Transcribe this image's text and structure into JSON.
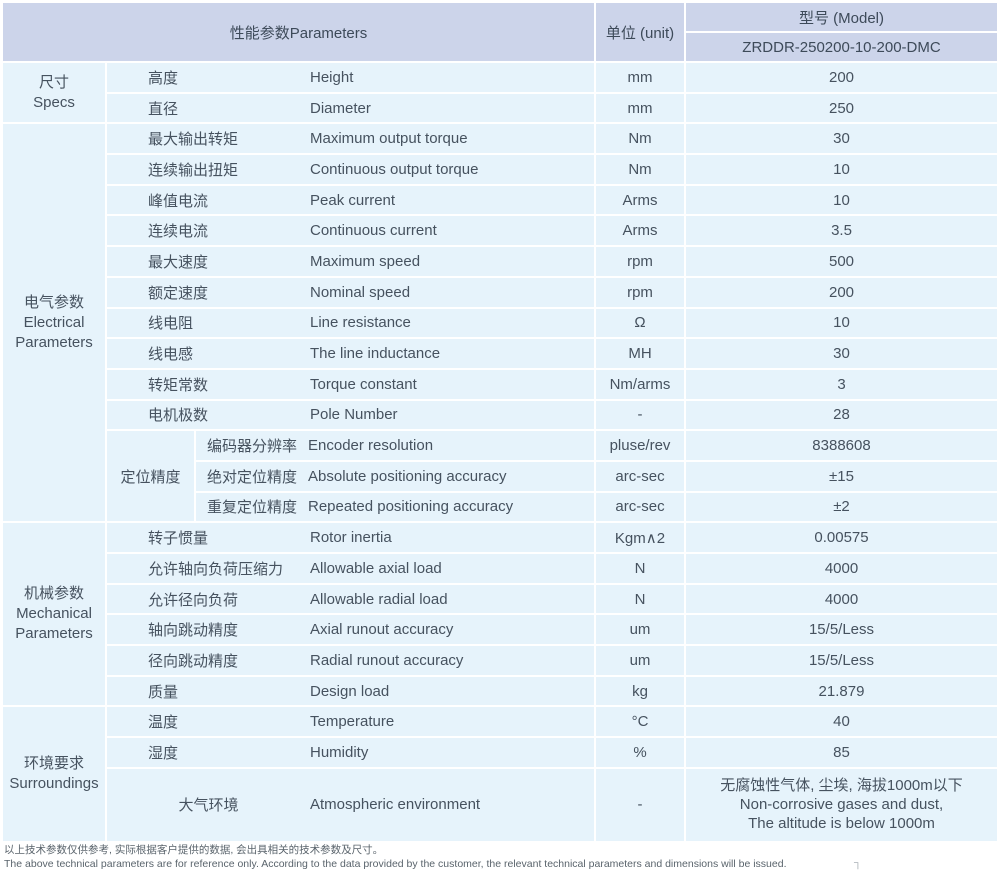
{
  "colors": {
    "header_bg": "#ccd4ea",
    "row_bg": "#e6f3fb",
    "text": "#46525f"
  },
  "table": {
    "header": {
      "parameters": "性能参数Parameters",
      "unit": "单位 (unit)",
      "model": "型号 (Model)",
      "model_value": "ZRDDR-250200-10-200-DMC"
    },
    "sections": [
      {
        "label_lines": [
          "尺寸",
          "Specs"
        ],
        "rows": [
          {
            "cn": "高度",
            "en": "Height",
            "unit": "mm",
            "value": "200"
          },
          {
            "cn": "直径",
            "en": "Diameter",
            "unit": "mm",
            "value": "250"
          }
        ]
      },
      {
        "label_lines": [
          "电气参数",
          "Electrical",
          "Parameters"
        ],
        "rows": [
          {
            "cn": "最大输出转矩",
            "en": "Maximum output torque",
            "unit": "Nm",
            "value": "30"
          },
          {
            "cn": "连续输出扭矩",
            "en": "Continuous output torque",
            "unit": "Nm",
            "value": "10"
          },
          {
            "cn": "峰值电流",
            "en": "Peak current",
            "unit": "Arms",
            "value": "10"
          },
          {
            "cn": "连续电流",
            "en": "Continuous current",
            "unit": "Arms",
            "value": "3.5"
          },
          {
            "cn": "最大速度",
            "en": "Maximum speed",
            "unit": "rpm",
            "value": "500"
          },
          {
            "cn": "额定速度",
            "en": "Nominal speed",
            "unit": "rpm",
            "value": "200"
          },
          {
            "cn": "线电阻",
            "en": "Line resistance",
            "unit": "Ω",
            "value": "10"
          },
          {
            "cn": "线电感",
            "en": "The line inductance",
            "unit": "MH",
            "value": "30"
          },
          {
            "cn": "转矩常数",
            "en": "Torque constant",
            "unit": "Nm/arms",
            "value": "3"
          },
          {
            "cn": "电机极数",
            "en": "Pole Number",
            "unit": "-",
            "value": "28"
          },
          {
            "group": "定位精度",
            "group_span": 3,
            "grouped": true,
            "cn": "编码器分辨率",
            "en": "Encoder resolution",
            "unit": "pluse/rev",
            "value": "8388608"
          },
          {
            "grouped": true,
            "cn": "绝对定位精度",
            "en": "Absolute positioning accuracy",
            "unit": "arc-sec",
            "value": "±15"
          },
          {
            "grouped": true,
            "cn": "重复定位精度",
            "en": "Repeated positioning accuracy",
            "unit": "arc-sec",
            "value": "±2"
          }
        ]
      },
      {
        "label_lines": [
          "机械参数",
          "Mechanical",
          "Parameters"
        ],
        "rows": [
          {
            "cn": "转子惯量",
            "en": "Rotor inertia",
            "unit": "Kgm∧2",
            "value": "0.00575"
          },
          {
            "cn": "允许轴向负荷压缩力",
            "en": "Allowable axial load",
            "unit": "N",
            "value": "4000"
          },
          {
            "cn": "允许径向负荷",
            "en": "Allowable radial load",
            "unit": "N",
            "value": "4000"
          },
          {
            "cn": "轴向跳动精度",
            "en": "Axial runout accuracy",
            "unit": "um",
            "value": "15/5/Less"
          },
          {
            "cn": "径向跳动精度",
            "en": "Radial runout accuracy",
            "unit": "um",
            "value": "15/5/Less"
          },
          {
            "cn": "质量",
            "en": "Design load",
            "unit": "kg",
            "value": "21.879"
          }
        ]
      },
      {
        "label_lines": [
          "环境要求",
          "Surroundings"
        ],
        "rows": [
          {
            "cn": "温度",
            "en": "Temperature",
            "unit": "°C",
            "value": "40"
          },
          {
            "cn": "湿度",
            "en": "Humidity",
            "unit": "%",
            "value": "85"
          },
          {
            "cn": "大气环境",
            "en": "Atmospheric environment",
            "unit": "-",
            "center_cn": true,
            "tall": true,
            "value_lines": [
              "无腐蚀性气体, 尘埃, 海拔1000m以下",
              "Non-corrosive gases and dust,",
              "The altitude is below 1000m"
            ]
          }
        ]
      }
    ]
  },
  "footnotes": {
    "cn": "以上技术参数仅供参考, 实际根据客户提供的数据, 会出具相关的技术参数及尺寸。",
    "en": "The above technical parameters are for reference only. According to the data provided by the customer, the relevant technical parameters and dimensions will be issued.",
    "corner_mark": "┐"
  }
}
